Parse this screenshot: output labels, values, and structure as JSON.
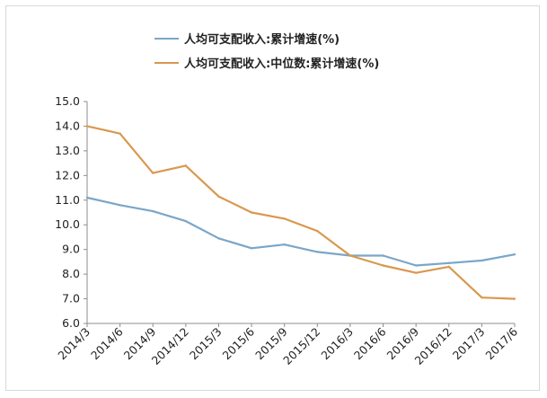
{
  "chart_data": {
    "type": "line",
    "categories": [
      "2014/3",
      "2014/6",
      "2014/9",
      "2014/12",
      "2015/3",
      "2015/6",
      "2015/9",
      "2015/12",
      "2016/3",
      "2016/6",
      "2016/9",
      "2016/12",
      "2017/3",
      "2017/6"
    ],
    "series": [
      {
        "name": "人均可支配收入:累计增速(%)",
        "color": "#7aa6c8",
        "values": [
          11.1,
          10.8,
          10.55,
          10.15,
          9.45,
          9.05,
          9.2,
          8.9,
          8.75,
          8.75,
          8.35,
          8.45,
          8.55,
          8.8
        ]
      },
      {
        "name": "人均可支配收入:中位数:累计增速(%)",
        "color": "#d9984f",
        "values": [
          14.0,
          13.7,
          12.1,
          12.4,
          11.15,
          10.5,
          10.25,
          9.75,
          8.75,
          8.35,
          8.05,
          8.3,
          7.05,
          7.0
        ]
      }
    ],
    "ylim": [
      6.0,
      15.0
    ],
    "yticks": [
      "6.0",
      "7.0",
      "8.0",
      "9.0",
      "10.0",
      "11.0",
      "12.0",
      "13.0",
      "14.0",
      "15.0"
    ],
    "title": "",
    "xlabel": "",
    "ylabel": "",
    "legend": "top-center",
    "grid": false
  }
}
